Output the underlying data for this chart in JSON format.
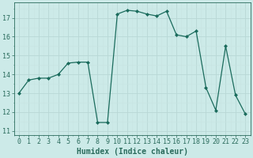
{
  "x": [
    0,
    1,
    2,
    3,
    4,
    5,
    6,
    7,
    8,
    9,
    10,
    11,
    12,
    13,
    14,
    15,
    16,
    17,
    18,
    19,
    20,
    21,
    22,
    23
  ],
  "y": [
    13.0,
    13.7,
    13.8,
    13.8,
    14.0,
    14.6,
    14.65,
    14.65,
    11.45,
    11.45,
    17.2,
    17.4,
    17.35,
    17.2,
    17.1,
    17.35,
    16.1,
    16.0,
    16.3,
    13.3,
    12.1,
    15.5,
    12.9,
    11.9
  ],
  "xlabel": "Humidex (Indice chaleur)",
  "ylim": [
    10.8,
    17.8
  ],
  "xlim": [
    -0.5,
    23.5
  ],
  "yticks": [
    11,
    12,
    13,
    14,
    15,
    16,
    17
  ],
  "xticks": [
    0,
    1,
    2,
    3,
    4,
    5,
    6,
    7,
    8,
    9,
    10,
    11,
    12,
    13,
    14,
    15,
    16,
    17,
    18,
    19,
    20,
    21,
    22,
    23
  ],
  "line_color": "#1a6b5c",
  "marker": "D",
  "marker_size": 2.0,
  "bg_color": "#cceae8",
  "grid_major_color": "#b8d8d6",
  "grid_minor_color": "#c8e4e2",
  "xlabel_fontsize": 7,
  "tick_fontsize": 6,
  "tick_color": "#2a6b5c"
}
